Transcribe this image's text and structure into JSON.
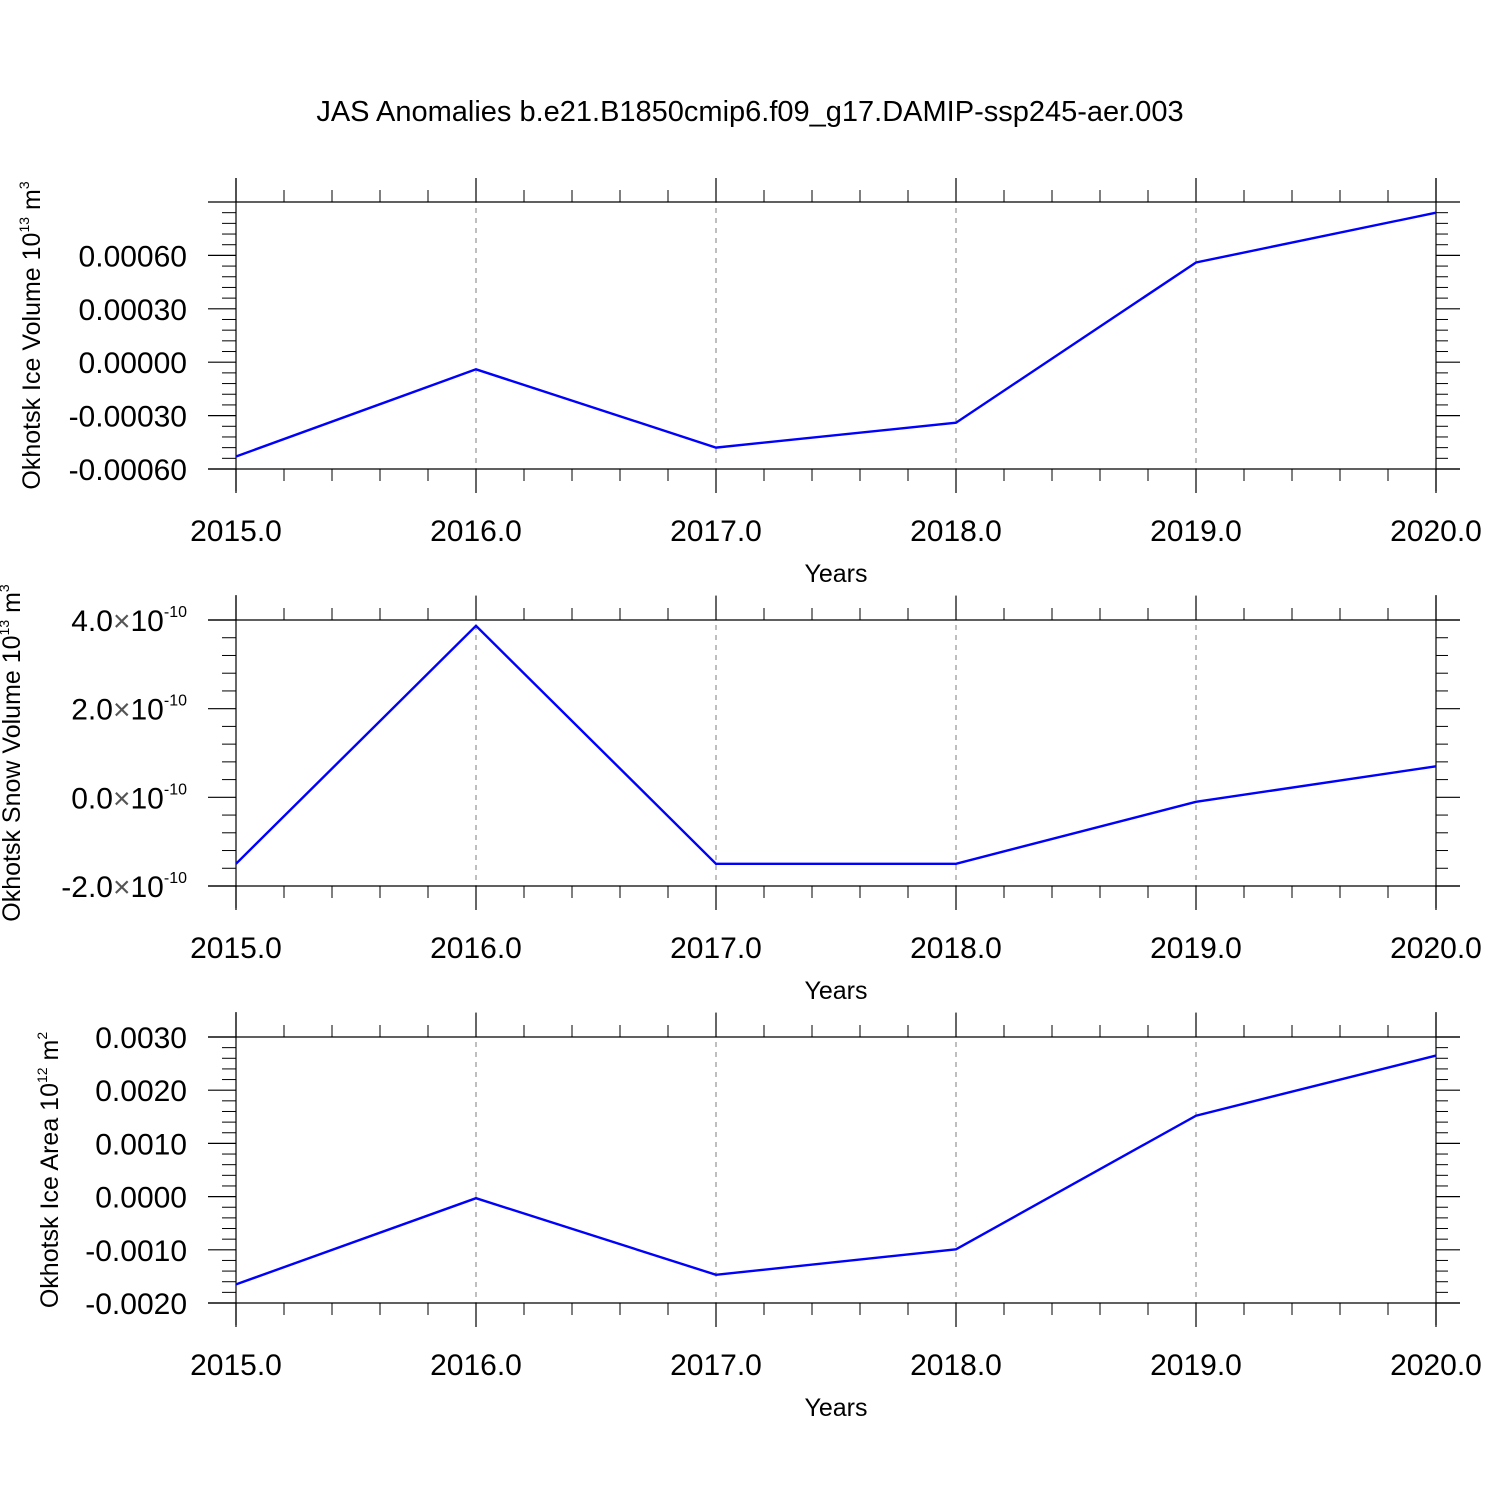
{
  "page": {
    "title": "JAS Anomalies b.e21.B1850cmip6.f09_g17.DAMIP-ssp245-aer.003"
  },
  "style": {
    "line_color": "#0000ff",
    "axis_color": "#000000",
    "grid_color": "#7f7f7f"
  },
  "chart_data": [
    {
      "type": "line",
      "ylabel": "Okhotsk Ice Volume",
      "yunit_base": "10",
      "yunit_exp": "13",
      "yunit_unit": "m",
      "yunit_unit_exp": "3",
      "xlabel": "Years",
      "xlim": [
        2015,
        2020
      ],
      "ylim": [
        -0.0006,
        0.0009
      ],
      "x_ticks": [
        2015,
        2016,
        2017,
        2018,
        2019,
        2020
      ],
      "x_tick_labels": [
        "2015.0",
        "2016.0",
        "2017.0",
        "2018.0",
        "2019.0",
        "2020.0"
      ],
      "y_ticks": [
        -0.0006,
        -0.0003,
        0.0,
        0.0003,
        0.0006
      ],
      "y_tick_labels": [
        "-0.00060",
        "-0.00030",
        "0.00000",
        "0.00030",
        "0.00060"
      ],
      "y_minor_step": 6e-05,
      "grid": "vertical dashed at major x ticks",
      "series": [
        {
          "x": [
            2015,
            2016,
            2017,
            2018,
            2019,
            2020
          ],
          "values": [
            -0.00053,
            -4e-05,
            -0.00048,
            -0.00034,
            0.00056,
            0.00084
          ]
        }
      ]
    },
    {
      "type": "line",
      "ylabel": "Okhotsk Snow Volume",
      "yunit_base": "10",
      "yunit_exp": "13",
      "yunit_unit": "m",
      "yunit_unit_exp": "3",
      "xlabel": "Years",
      "xlim": [
        2015,
        2020
      ],
      "ylim": [
        -2e-10,
        4e-10
      ],
      "x_ticks": [
        2015,
        2016,
        2017,
        2018,
        2019,
        2020
      ],
      "x_tick_labels": [
        "2015.0",
        "2016.0",
        "2017.0",
        "2018.0",
        "2019.0",
        "2020.0"
      ],
      "y_ticks": [
        -2e-10,
        0.0,
        2e-10,
        4e-10
      ],
      "y_tick_labels": [
        {
          "mantissa": "-2.0",
          "times": "×",
          "base": "10",
          "exp": "-10"
        },
        {
          "mantissa": "0.0",
          "times": "×",
          "base": "10",
          "exp": "-10"
        },
        {
          "mantissa": "2.0",
          "times": "×",
          "base": "10",
          "exp": "-10"
        },
        {
          "mantissa": "4.0",
          "times": "×",
          "base": "10",
          "exp": "-10"
        }
      ],
      "y_minor_step": 4e-11,
      "grid": "vertical dashed at major x ticks",
      "series": [
        {
          "x": [
            2015,
            2016,
            2017,
            2018,
            2019,
            2020
          ],
          "values": [
            -1.5e-10,
            3.87e-10,
            -1.5e-10,
            -1.5e-10,
            -1e-11,
            7e-11
          ]
        }
      ]
    },
    {
      "type": "line",
      "ylabel": "Okhotsk Ice Area",
      "yunit_base": "10",
      "yunit_exp": "12",
      "yunit_unit": "m",
      "yunit_unit_exp": "2",
      "xlabel": "Years",
      "xlim": [
        2015,
        2020
      ],
      "ylim": [
        -0.002,
        0.003
      ],
      "x_ticks": [
        2015,
        2016,
        2017,
        2018,
        2019,
        2020
      ],
      "x_tick_labels": [
        "2015.0",
        "2016.0",
        "2017.0",
        "2018.0",
        "2019.0",
        "2020.0"
      ],
      "y_ticks": [
        -0.002,
        -0.001,
        0.0,
        0.001,
        0.002,
        0.003
      ],
      "y_tick_labels": [
        "-0.0020",
        "-0.0010",
        "0.0000",
        "0.0010",
        "0.0020",
        "0.0030"
      ],
      "y_minor_step": 0.0002,
      "grid": "vertical dashed at major x ticks",
      "series": [
        {
          "x": [
            2015,
            2016,
            2017,
            2018,
            2019,
            2020
          ],
          "values": [
            -0.00165,
            -3e-05,
            -0.00147,
            -0.00099,
            0.00152,
            0.00265
          ]
        }
      ]
    }
  ]
}
